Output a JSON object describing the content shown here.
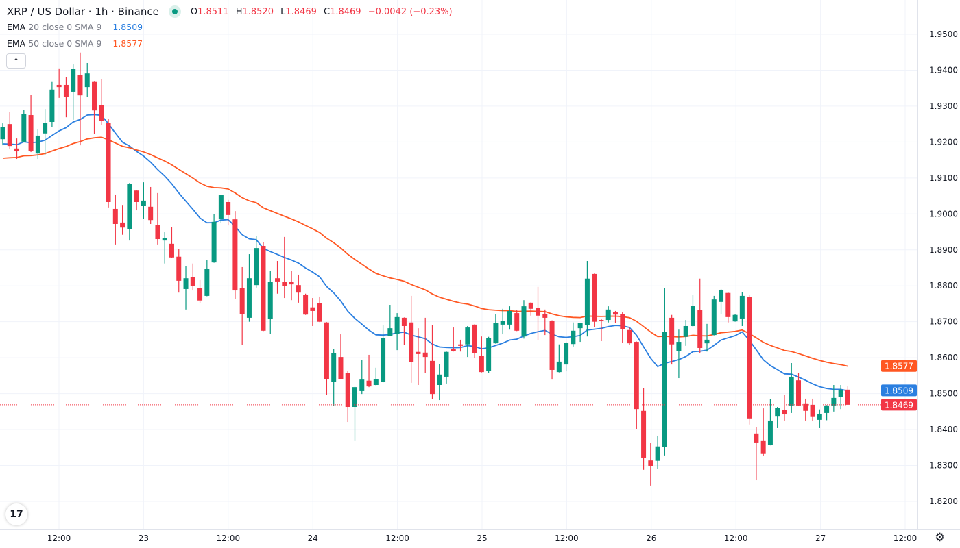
{
  "header": {
    "title": "XRP / US Dollar · 1h · Binance",
    "status_dot_color": "#089981",
    "ohlc": {
      "o_label": "O",
      "o": "1.8511",
      "h_label": "H",
      "h": "1.8520",
      "l_label": "L",
      "l": "1.8469",
      "c_label": "C",
      "c": "1.8469",
      "change": "−0.0042 (−0.23%)"
    }
  },
  "indicators": [
    {
      "label": "EMA",
      "params": "20 close 0 SMA 9",
      "value": "1.8509",
      "color": "#2B7FE0"
    },
    {
      "label": "EMA",
      "params": "50 close 0 SMA 9",
      "value": "1.8577",
      "color": "#FF5722"
    }
  ],
  "controls": {
    "collapse_icon": "chevron-up-icon",
    "collapse_glyph": "⌃",
    "logo_text": "17",
    "settings_glyph": "⚙"
  },
  "chart_data": {
    "type": "candlestick",
    "symbol": "XRP / US Dollar",
    "interval": "1h",
    "exchange": "Binance",
    "first_candle": "22 04:00",
    "last_candle": "27 04:00",
    "up_color": "#089981",
    "down_color": "#F23645",
    "ylim": [
      1.815,
      1.959
    ],
    "grid": true,
    "y_ticks": [
      "1.9500",
      "1.9400",
      "1.9300",
      "1.9200",
      "1.9100",
      "1.9000",
      "1.8900",
      "1.8800",
      "1.8700",
      "1.8600",
      "1.8500",
      "1.8400",
      "1.8300",
      "1.8200"
    ],
    "x_ticks": [
      "12:00",
      "23",
      "12:00",
      "24",
      "12:00",
      "25",
      "12:00",
      "26",
      "12:00",
      "27",
      "12:00"
    ],
    "ohlc": [
      [
        1.9208,
        1.9252,
        1.9191,
        1.9241
      ],
      [
        1.925,
        1.9283,
        1.918,
        1.9189
      ],
      [
        1.9182,
        1.921,
        1.9153,
        1.9174
      ],
      [
        1.9201,
        1.929,
        1.9199,
        1.9277
      ],
      [
        1.9275,
        1.9332,
        1.9172,
        1.9174
      ],
      [
        1.9168,
        1.9237,
        1.9153,
        1.9218
      ],
      [
        1.9224,
        1.9292,
        1.9163,
        1.9254
      ],
      [
        1.9256,
        1.9369,
        1.9241,
        1.9346
      ],
      [
        1.9359,
        1.9405,
        1.9323,
        1.9353
      ],
      [
        1.9359,
        1.938,
        1.9269,
        1.9325
      ],
      [
        1.934,
        1.9416,
        1.9262,
        1.9403
      ],
      [
        1.9386,
        1.9449,
        1.9191,
        1.933
      ],
      [
        1.9353,
        1.942,
        1.9325,
        1.9391
      ],
      [
        1.9369,
        1.937,
        1.9222,
        1.9288
      ],
      [
        1.9302,
        1.9376,
        1.9248,
        1.9258
      ],
      [
        1.9254,
        1.9264,
        1.9018,
        1.9033
      ],
      [
        1.9014,
        1.9054,
        1.8915,
        1.8972
      ],
      [
        1.8976,
        1.9025,
        1.8942,
        1.8962
      ],
      [
        1.8957,
        1.9086,
        1.8926,
        1.9084
      ],
      [
        1.9065,
        1.9066,
        1.901,
        1.9033
      ],
      [
        1.9022,
        1.9088,
        1.8987,
        1.9037
      ],
      [
        1.902,
        1.9075,
        1.8972,
        1.8983
      ],
      [
        1.897,
        1.9058,
        1.8915,
        1.893
      ],
      [
        1.8926,
        1.8949,
        1.8862,
        1.8932
      ],
      [
        1.8917,
        1.8964,
        1.8878,
        1.8879
      ],
      [
        1.8881,
        1.8902,
        1.8781,
        1.8814
      ],
      [
        1.8791,
        1.8854,
        1.8734,
        1.8821
      ],
      [
        1.8825,
        1.8862,
        1.8787,
        1.8799
      ],
      [
        1.8793,
        1.8816,
        1.8751,
        1.8759
      ],
      [
        1.8772,
        1.8871,
        1.8771,
        1.8848
      ],
      [
        1.8865,
        1.8999,
        1.8864,
        1.8978
      ],
      [
        1.8985,
        1.9053,
        1.8976,
        1.9052
      ],
      [
        1.9033,
        1.9039,
        1.8968,
        1.8997
      ],
      [
        1.8985,
        1.9008,
        1.8764,
        1.8787
      ],
      [
        1.8793,
        1.8852,
        1.8635,
        1.8722
      ],
      [
        1.8711,
        1.8888,
        1.87,
        1.8821
      ],
      [
        1.8802,
        1.8938,
        1.8795,
        1.8905
      ],
      [
        1.8911,
        1.8922,
        1.8674,
        1.8675
      ],
      [
        1.8707,
        1.8842,
        1.8667,
        1.881
      ],
      [
        1.8821,
        1.8869,
        1.8778,
        1.8812
      ],
      [
        1.881,
        1.8936,
        1.8766,
        1.8799
      ],
      [
        1.881,
        1.8842,
        1.876,
        1.8804
      ],
      [
        1.8802,
        1.8831,
        1.8753,
        1.8781
      ],
      [
        1.8774,
        1.8778,
        1.8719,
        1.872
      ],
      [
        1.874,
        1.8766,
        1.8688,
        1.873
      ],
      [
        1.8751,
        1.877,
        1.8699,
        1.87
      ],
      [
        1.8698,
        1.8699,
        1.8496,
        1.8541
      ],
      [
        1.8532,
        1.8625,
        1.8465,
        1.8612
      ],
      [
        1.8602,
        1.8665,
        1.854,
        1.8541
      ],
      [
        1.8558,
        1.8564,
        1.8421,
        1.8463
      ],
      [
        1.8463,
        1.8519,
        1.8368,
        1.8518
      ],
      [
        1.8507,
        1.8593,
        1.8499,
        1.8539
      ],
      [
        1.8536,
        1.8608,
        1.8518,
        1.852
      ],
      [
        1.8524,
        1.8572,
        1.8523,
        1.8541
      ],
      [
        1.8532,
        1.869,
        1.8531,
        1.8654
      ],
      [
        1.8661,
        1.8747,
        1.866,
        1.8682
      ],
      [
        1.8667,
        1.8724,
        1.8621,
        1.8713
      ],
      [
        1.8711,
        1.8712,
        1.8635,
        1.8688
      ],
      [
        1.8698,
        1.8772,
        1.853,
        1.8587
      ],
      [
        1.8616,
        1.8682,
        1.8524,
        1.861
      ],
      [
        1.8614,
        1.8711,
        1.8558,
        1.8602
      ],
      [
        1.8591,
        1.869,
        1.8484,
        1.8499
      ],
      [
        1.8524,
        1.8583,
        1.8482,
        1.8553
      ],
      [
        1.8547,
        1.8617,
        1.8528,
        1.8616
      ],
      [
        1.8625,
        1.8684,
        1.8617,
        1.8619
      ],
      [
        1.8637,
        1.865,
        1.8617,
        1.8633
      ],
      [
        1.8637,
        1.8688,
        1.8602,
        1.8684
      ],
      [
        1.8692,
        1.8693,
        1.86,
        1.8612
      ],
      [
        1.8606,
        1.8659,
        1.8559,
        1.856
      ],
      [
        1.8564,
        1.8658,
        1.8558,
        1.8654
      ],
      [
        1.864,
        1.8722,
        1.8639,
        1.8696
      ],
      [
        1.8692,
        1.8736,
        1.8665,
        1.8703
      ],
      [
        1.8692,
        1.8743,
        1.8678,
        1.873
      ],
      [
        1.8724,
        1.8732,
        1.8674,
        1.8675
      ],
      [
        1.8659,
        1.876,
        1.8653,
        1.8743
      ],
      [
        1.8753,
        1.8754,
        1.8717,
        1.8736
      ],
      [
        1.8738,
        1.8797,
        1.8648,
        1.8717
      ],
      [
        1.8722,
        1.8734,
        1.8663,
        1.8711
      ],
      [
        1.8703,
        1.8704,
        1.8539,
        1.8566
      ],
      [
        1.856,
        1.8637,
        1.8559,
        1.8589
      ],
      [
        1.8581,
        1.8643,
        1.8562,
        1.8642
      ],
      [
        1.8638,
        1.8698,
        1.8631,
        1.8675
      ],
      [
        1.8682,
        1.8697,
        1.8644,
        1.8696
      ],
      [
        1.869,
        1.8869,
        1.8659,
        1.882
      ],
      [
        1.8833,
        1.8834,
        1.8686,
        1.87
      ],
      [
        1.8705,
        1.8709,
        1.8646,
        1.8703
      ],
      [
        1.8705,
        1.8743,
        1.8698,
        1.8734
      ],
      [
        1.8726,
        1.873,
        1.8696,
        1.872
      ],
      [
        1.8722,
        1.8726,
        1.8642,
        1.868
      ],
      [
        1.8677,
        1.8684,
        1.8635,
        1.864
      ],
      [
        1.8644,
        1.8645,
        1.8402,
        1.8457
      ],
      [
        1.8452,
        1.8515,
        1.8288,
        1.8322
      ],
      [
        1.8314,
        1.8362,
        1.8244,
        1.8299
      ],
      [
        1.8313,
        1.8383,
        1.829,
        1.8353
      ],
      [
        1.8351,
        1.8793,
        1.8328,
        1.8671
      ],
      [
        1.8711,
        1.8719,
        1.8581,
        1.8637
      ],
      [
        1.8619,
        1.8678,
        1.8543,
        1.8644
      ],
      [
        1.8658,
        1.8705,
        1.8633,
        1.8688
      ],
      [
        1.8688,
        1.8774,
        1.8686,
        1.8745
      ],
      [
        1.8732,
        1.882,
        1.8612,
        1.8627
      ],
      [
        1.864,
        1.8694,
        1.8617,
        1.865
      ],
      [
        1.8663,
        1.8772,
        1.8662,
        1.8762
      ],
      [
        1.8755,
        1.8791,
        1.8722,
        1.8789
      ],
      [
        1.878,
        1.8781,
        1.8698,
        1.8713
      ],
      [
        1.8701,
        1.8722,
        1.87,
        1.8719
      ],
      [
        1.8709,
        1.8783,
        1.8688,
        1.8772
      ],
      [
        1.8768,
        1.8774,
        1.8414,
        1.8431
      ],
      [
        1.8389,
        1.8406,
        1.8259,
        1.8364
      ],
      [
        1.8368,
        1.8459,
        1.8326,
        1.8332
      ],
      [
        1.8358,
        1.8484,
        1.8356,
        1.8425
      ],
      [
        1.8436,
        1.8463,
        1.8404,
        1.8461
      ],
      [
        1.8454,
        1.8496,
        1.8425,
        1.8442
      ],
      [
        1.8467,
        1.8585,
        1.8446,
        1.8547
      ],
      [
        1.8537,
        1.8558,
        1.8466,
        1.8467
      ],
      [
        1.8471,
        1.8486,
        1.8425,
        1.8452
      ],
      [
        1.8469,
        1.8486,
        1.8423,
        1.8435
      ],
      [
        1.8427,
        1.8456,
        1.8404,
        1.8444
      ],
      [
        1.8446,
        1.8468,
        1.8426,
        1.8467
      ],
      [
        1.8467,
        1.8524,
        1.845,
        1.8488
      ],
      [
        1.849,
        1.8524,
        1.8457,
        1.8511
      ],
      [
        1.8511,
        1.852,
        1.8469,
        1.8469
      ]
    ],
    "ema_lines": [
      {
        "period": 20,
        "value_at_first_candle": 1.9195,
        "last_value": "1.8509",
        "color": "#2B7FE0"
      },
      {
        "period": 50,
        "value_at_first_candle": 1.9155,
        "last_value": "1.8577",
        "color": "#FF5722"
      }
    ],
    "last_price": {
      "value": "1.8469",
      "color": "#F23645"
    }
  }
}
